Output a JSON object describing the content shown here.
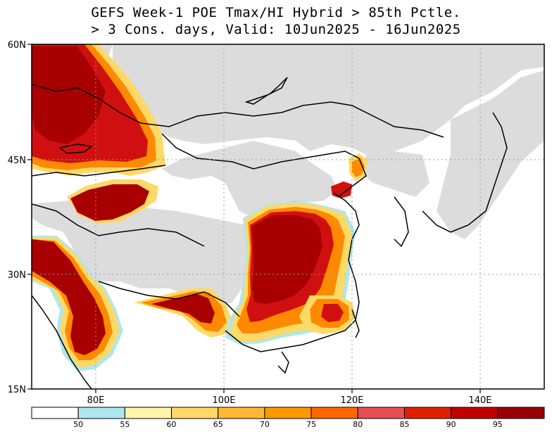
{
  "title_line1": "GEFS Week-1 POE Tmax/HI Hybrid > 85th Pctle.",
  "title_line2": "> 3 Cons. days, Valid: 10Jun2025 - 16Jun2025",
  "lat_labels": [
    "60N",
    "45N",
    "30N",
    "15N"
  ],
  "lon_labels": [
    "80E",
    "100E",
    "120E",
    "140E"
  ],
  "colorbar": {
    "colors": [
      "#ffffff",
      "#aee6f0",
      "#fff5a8",
      "#ffd966",
      "#ffb833",
      "#ff9900",
      "#ff6600",
      "#e65050",
      "#e02000",
      "#c00000",
      "#990000"
    ],
    "labels": [
      "50",
      "55",
      "60",
      "65",
      "70",
      "75",
      "80",
      "85",
      "90",
      "95"
    ]
  },
  "colors": {
    "land_gray": "#dcdcdc",
    "deep_red": "#a80000",
    "mid_red": "#d01010",
    "orange": "#ff8a00",
    "yellow": "#ffd966"
  }
}
